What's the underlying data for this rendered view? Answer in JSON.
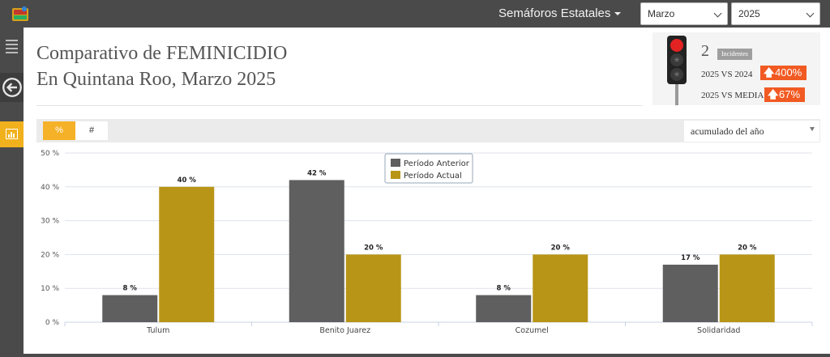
{
  "topbar": {
    "menu_label": "Semáforos Estatales",
    "month_select": "Marzo",
    "year_select": "2025"
  },
  "header": {
    "title_line1": "Comparativo de FEMINICIDIO",
    "title_line2": "En Quintana Roo, Marzo 2025"
  },
  "stats": {
    "count": "2",
    "count_label": "Incidentes",
    "row1_label": "2025 VS 2024",
    "row1_value": "400%",
    "row2_label": "2025 VS MEDIA",
    "row2_value": "67%",
    "light_color": "#e32222",
    "badge_color": "#f15a22"
  },
  "toolbar": {
    "percent_label": "%",
    "count_label": "#",
    "range_select": "acumulado del año"
  },
  "chart_data": {
    "type": "bar",
    "categories": [
      "Tulum",
      "Benito Juarez",
      "Cozumel",
      "Solidaridad"
    ],
    "series": [
      {
        "name": "Período Anterior",
        "values": [
          8,
          42,
          8,
          17
        ],
        "color": "#5f5f5f"
      },
      {
        "name": "Período Actual",
        "values": [
          40,
          20,
          20,
          20
        ],
        "color": "#b89516"
      }
    ],
    "data_labels_anterior": [
      "8 %",
      "42 %",
      "8 %",
      "17 %"
    ],
    "data_labels_actual": [
      "40 %",
      "20 %",
      "20 %",
      "20 %"
    ],
    "y_ticks": [
      "0 %",
      "10 %",
      "20 %",
      "30 %",
      "40 %",
      "50 %"
    ],
    "ylim": [
      0,
      50
    ],
    "grid": true,
    "legend_position": "top-center"
  }
}
